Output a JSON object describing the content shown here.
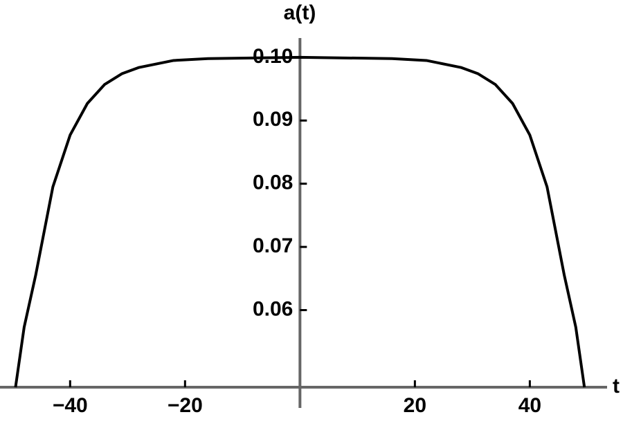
{
  "chart_data": {
    "type": "line",
    "x_label": "t",
    "y_label": "a(t)",
    "x": [
      -49.5,
      -48,
      -46,
      -43,
      -40,
      -37,
      -34,
      -31,
      -28,
      -22,
      -16,
      0,
      16,
      22,
      28,
      31,
      34,
      37,
      40,
      43,
      46,
      48,
      49.5
    ],
    "series": [
      {
        "color": "#000000",
        "values": [
          0.0478,
          0.0573,
          0.0655,
          0.0795,
          0.0877,
          0.0927,
          0.0957,
          0.0974,
          0.0984,
          0.0995,
          0.0998,
          0.1,
          0.0998,
          0.0995,
          0.0984,
          0.0974,
          0.0957,
          0.0927,
          0.0877,
          0.0795,
          0.0655,
          0.0573,
          0.0478
        ]
      }
    ],
    "xlim": [
      -51.6,
      52
    ],
    "ylim": [
      0.0478,
      0.1036
    ],
    "xticks": [
      {
        "value": -40,
        "label": "−40"
      },
      {
        "value": -20,
        "label": "−20"
      },
      20,
      40
    ],
    "yticks": [
      0.06,
      0.07,
      0.08,
      0.09,
      {
        "value": 0.1,
        "label": "0.10"
      }
    ],
    "axis_color": "#666666"
  }
}
